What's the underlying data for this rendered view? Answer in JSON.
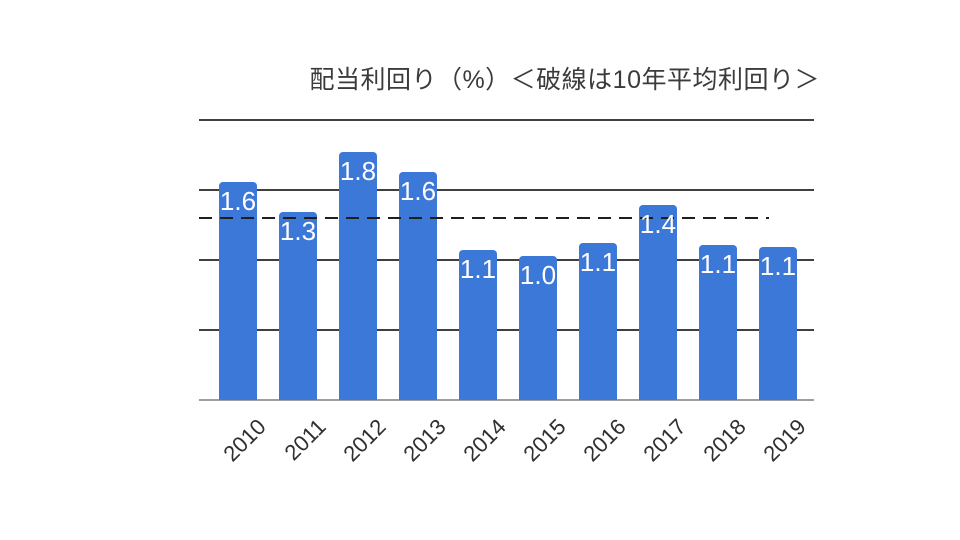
{
  "title": "配当利回り（%）＜破線は10年平均利回り＞",
  "colors": {
    "background": "#ffffff",
    "bar": "#3c78d8",
    "gridline": "#404040",
    "baseline": "#9e9e9e",
    "dashed_line": "#1f1f1f",
    "value_label": "#ffffff",
    "axis_text": "#2f2f2f",
    "title_text": "#3b3b3b"
  },
  "chart_data": {
    "type": "bar",
    "title": "配当利回り（%）＜破線は10年平均利回り＞",
    "unit": "%",
    "categories": [
      "2010",
      "2011",
      "2012",
      "2013",
      "2014",
      "2015",
      "2016",
      "2017",
      "2018",
      "2019"
    ],
    "values": [
      1.6,
      1.3,
      1.8,
      1.6,
      1.1,
      1.0,
      1.1,
      1.4,
      1.1,
      1.1
    ],
    "value_labels": [
      "1.6",
      "1.3",
      "1.8",
      "1.6",
      "1.1",
      "1.0",
      "1.1",
      "1.4",
      "1.1",
      "1.1"
    ],
    "bar_heights_estimated": [
      1.56,
      1.34,
      1.77,
      1.63,
      1.07,
      1.03,
      1.12,
      1.39,
      1.11,
      1.09
    ],
    "average_line_value": 1.3,
    "average_line_note": "破線は10年平均利回り",
    "ylim": [
      0,
      2.0
    ],
    "gridline_interval": 0.5,
    "grid": true,
    "y_tick_labels_shown": false,
    "legend": "none"
  }
}
